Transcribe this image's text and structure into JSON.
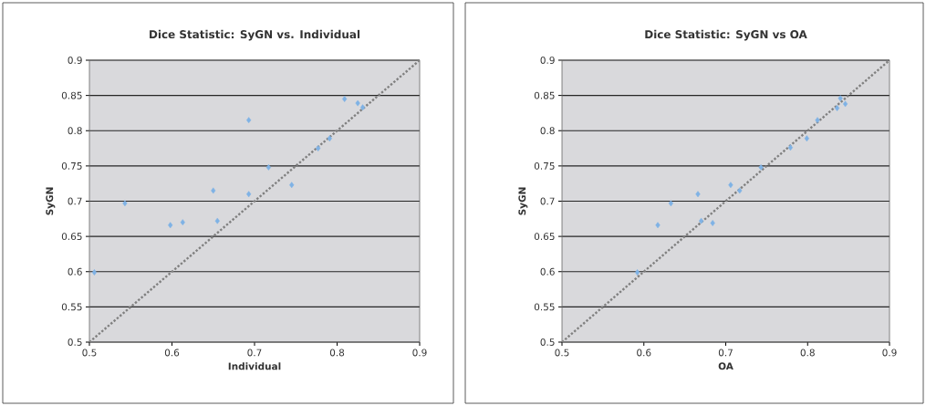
{
  "chart_data": [
    {
      "type": "scatter",
      "title": "Dice Statistic: SyGN vs. Individual",
      "xlabel": "Individual",
      "ylabel": "SyGN",
      "xlim": [
        0.5,
        0.9
      ],
      "ylim": [
        0.5,
        0.9
      ],
      "xticks": [
        0.5,
        0.6,
        0.7,
        0.8,
        0.9
      ],
      "yticks": [
        0.5,
        0.55,
        0.6,
        0.65,
        0.7,
        0.75,
        0.8,
        0.85,
        0.9
      ],
      "grid": "y",
      "marker": "diamond",
      "series": [
        {
          "color": "#7fb2e5",
          "x": [
            0.506,
            0.543,
            0.598,
            0.613,
            0.65,
            0.655,
            0.693,
            0.693,
            0.717,
            0.745,
            0.777,
            0.791,
            0.809,
            0.825,
            0.831
          ],
          "values": [
            0.599,
            0.697,
            0.666,
            0.67,
            0.715,
            0.672,
            0.815,
            0.71,
            0.748,
            0.723,
            0.775,
            0.789,
            0.845,
            0.839,
            0.833
          ]
        },
        {
          "type": "line",
          "color": "#808080",
          "line_style": "dotted",
          "marker": "none",
          "x": [
            0.5,
            0.9
          ],
          "values": [
            0.5,
            0.9
          ]
        }
      ]
    },
    {
      "type": "scatter",
      "title": "Dice Statistic:  SyGN vs OA",
      "xlabel": "OA",
      "ylabel": "SyGN",
      "xlim": [
        0.5,
        0.9
      ],
      "ylim": [
        0.5,
        0.9
      ],
      "xticks": [
        0.5,
        0.6,
        0.7,
        0.8,
        0.9
      ],
      "yticks": [
        0.5,
        0.55,
        0.6,
        0.65,
        0.7,
        0.75,
        0.8,
        0.85,
        0.9
      ],
      "grid": "y",
      "marker": "diamond",
      "series": [
        {
          "color": "#7fb2e5",
          "x": [
            0.592,
            0.617,
            0.633,
            0.666,
            0.67,
            0.684,
            0.706,
            0.717,
            0.743,
            0.779,
            0.799,
            0.812,
            0.836,
            0.84,
            0.846
          ],
          "values": [
            0.599,
            0.666,
            0.697,
            0.71,
            0.672,
            0.669,
            0.723,
            0.715,
            0.748,
            0.776,
            0.789,
            0.815,
            0.832,
            0.846,
            0.838
          ]
        },
        {
          "type": "line",
          "color": "#808080",
          "line_style": "dotted",
          "marker": "none",
          "x": [
            0.5,
            0.9
          ],
          "values": [
            0.5,
            0.9
          ]
        }
      ]
    }
  ]
}
